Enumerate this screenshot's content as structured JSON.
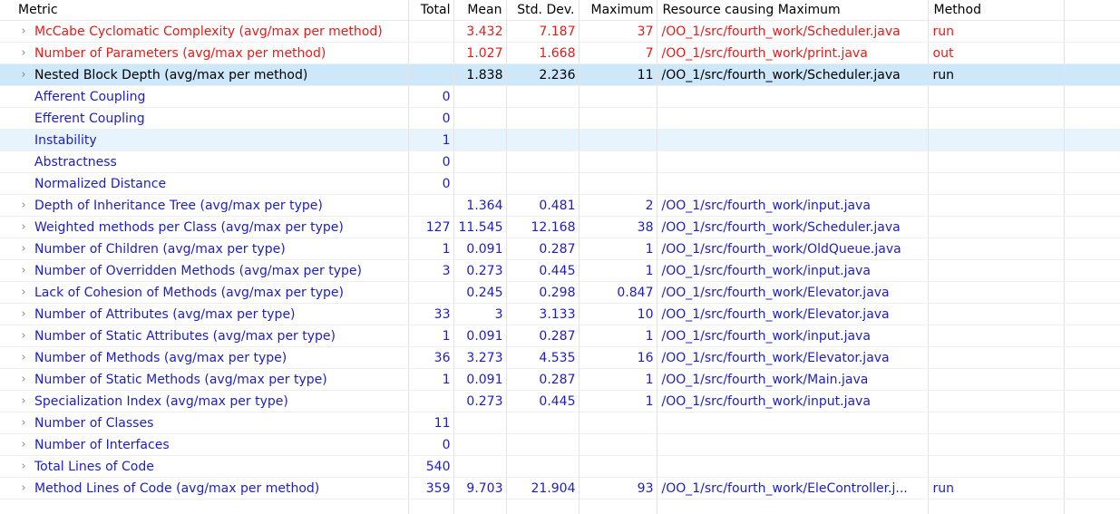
{
  "headers": {
    "metric": "Metric",
    "total": "Total",
    "mean": "Mean",
    "std": "Std. Dev.",
    "max": "Maximum",
    "resource": "Resource causing Maximum",
    "method": "Method"
  },
  "colors": {
    "warning": "#e81a1a",
    "normal": "#1d1dc5",
    "selected_row": "#cde8fb",
    "hover_row": "#e7f3fd",
    "chevron": "#8a8a8a"
  },
  "rows": [
    {
      "label": "McCabe Cyclomatic Complexity (avg/max per method)",
      "total": "",
      "mean": "3.432",
      "std": "7.187",
      "max": "37",
      "resource": "/OO_1/src/fourth_work/Scheduler.java",
      "method": "run",
      "expandable": true
    },
    {
      "label": "Number of Parameters (avg/max per method)",
      "total": "",
      "mean": "1.027",
      "std": "1.668",
      "max": "7",
      "resource": "/OO_1/src/fourth_work/print.java",
      "method": "out",
      "expandable": true
    },
    {
      "label": "Nested Block Depth (avg/max per method)",
      "total": "",
      "mean": "1.838",
      "std": "2.236",
      "max": "11",
      "resource": "/OO_1/src/fourth_work/Scheduler.java",
      "method": "run",
      "expandable": true
    },
    {
      "label": "Afferent Coupling",
      "total": "0",
      "mean": "",
      "std": "",
      "max": "",
      "resource": "",
      "method": "",
      "expandable": false
    },
    {
      "label": "Efferent Coupling",
      "total": "0",
      "mean": "",
      "std": "",
      "max": "",
      "resource": "",
      "method": "",
      "expandable": false
    },
    {
      "label": "Instability",
      "total": "1",
      "mean": "",
      "std": "",
      "max": "",
      "resource": "",
      "method": "",
      "expandable": false
    },
    {
      "label": "Abstractness",
      "total": "0",
      "mean": "",
      "std": "",
      "max": "",
      "resource": "",
      "method": "",
      "expandable": false
    },
    {
      "label": "Normalized Distance",
      "total": "0",
      "mean": "",
      "std": "",
      "max": "",
      "resource": "",
      "method": "",
      "expandable": false
    },
    {
      "label": "Depth of Inheritance Tree (avg/max per type)",
      "total": "",
      "mean": "1.364",
      "std": "0.481",
      "max": "2",
      "resource": "/OO_1/src/fourth_work/input.java",
      "method": "",
      "expandable": true
    },
    {
      "label": "Weighted methods per Class (avg/max per type)",
      "total": "127",
      "mean": "11.545",
      "std": "12.168",
      "max": "38",
      "resource": "/OO_1/src/fourth_work/Scheduler.java",
      "method": "",
      "expandable": true
    },
    {
      "label": "Number of Children (avg/max per type)",
      "total": "1",
      "mean": "0.091",
      "std": "0.287",
      "max": "1",
      "resource": "/OO_1/src/fourth_work/OldQueue.java",
      "method": "",
      "expandable": true
    },
    {
      "label": "Number of Overridden Methods (avg/max per type)",
      "total": "3",
      "mean": "0.273",
      "std": "0.445",
      "max": "1",
      "resource": "/OO_1/src/fourth_work/input.java",
      "method": "",
      "expandable": true
    },
    {
      "label": "Lack of Cohesion of Methods (avg/max per type)",
      "total": "",
      "mean": "0.245",
      "std": "0.298",
      "max": "0.847",
      "resource": "/OO_1/src/fourth_work/Elevator.java",
      "method": "",
      "expandable": true
    },
    {
      "label": "Number of Attributes (avg/max per type)",
      "total": "33",
      "mean": "3",
      "std": "3.133",
      "max": "10",
      "resource": "/OO_1/src/fourth_work/Elevator.java",
      "method": "",
      "expandable": true
    },
    {
      "label": "Number of Static Attributes (avg/max per type)",
      "total": "1",
      "mean": "0.091",
      "std": "0.287",
      "max": "1",
      "resource": "/OO_1/src/fourth_work/input.java",
      "method": "",
      "expandable": true
    },
    {
      "label": "Number of Methods (avg/max per type)",
      "total": "36",
      "mean": "3.273",
      "std": "4.535",
      "max": "16",
      "resource": "/OO_1/src/fourth_work/Elevator.java",
      "method": "",
      "expandable": true
    },
    {
      "label": "Number of Static Methods (avg/max per type)",
      "total": "1",
      "mean": "0.091",
      "std": "0.287",
      "max": "1",
      "resource": "/OO_1/src/fourth_work/Main.java",
      "method": "",
      "expandable": true
    },
    {
      "label": "Specialization Index (avg/max per type)",
      "total": "",
      "mean": "0.273",
      "std": "0.445",
      "max": "1",
      "resource": "/OO_1/src/fourth_work/input.java",
      "method": "",
      "expandable": true
    },
    {
      "label": "Number of Classes",
      "total": "11",
      "mean": "",
      "std": "",
      "max": "",
      "resource": "",
      "method": "",
      "expandable": true
    },
    {
      "label": "Number of Interfaces",
      "total": "0",
      "mean": "",
      "std": "",
      "max": "",
      "resource": "",
      "method": "",
      "expandable": true
    },
    {
      "label": "Total Lines of Code",
      "total": "540",
      "mean": "",
      "std": "",
      "max": "",
      "resource": "",
      "method": "",
      "expandable": true
    },
    {
      "label": "Method Lines of Code (avg/max per method)",
      "total": "359",
      "mean": "9.703",
      "std": "21.904",
      "max": "93",
      "resource": "/OO_1/src/fourth_work/EleController.j...",
      "method": "run",
      "expandable": true
    }
  ]
}
